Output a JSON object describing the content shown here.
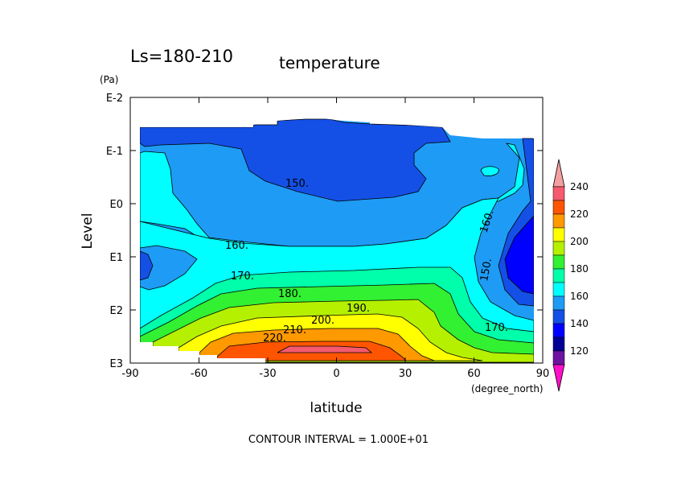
{
  "chart_data": {
    "type": "heatmap",
    "title_period": "Ls=180-210",
    "title_variable": "temperature",
    "xlabel": "latitude",
    "xunit": "(degree_north)",
    "ylabel": "Level",
    "yunit": "(Pa)",
    "xlim": [
      -90,
      90
    ],
    "x_ticks": [
      "-90",
      "-60",
      "-30",
      "0",
      "30",
      "60",
      "90"
    ],
    "y_ticks": [
      "E-2",
      "E-1",
      "E0",
      "E1",
      "E2",
      "E3"
    ],
    "y_scale": "log",
    "contour_labels": [
      {
        "text": "150.",
        "lat": -17,
        "level": "E-1 to E0"
      },
      {
        "text": "160.",
        "lat": -40,
        "level": "E0 to E1"
      },
      {
        "text": "170.",
        "lat": -39,
        "level": "E1 to E2"
      },
      {
        "text": "180.",
        "lat": -20,
        "level": "E1 to E2"
      },
      {
        "text": "190.",
        "lat": 10,
        "level": "E2"
      },
      {
        "text": "200.",
        "lat": -6,
        "level": "E2 to E3"
      },
      {
        "text": "210.",
        "lat": -17,
        "level": "E2 to E3"
      },
      {
        "text": "220.",
        "lat": -26,
        "level": "E2 to E3"
      },
      {
        "text": "160.",
        "lat": 63,
        "level": "E0 to E1"
      },
      {
        "text": "150.",
        "lat": 62,
        "level": "E1"
      },
      {
        "text": "170.",
        "lat": 66,
        "level": "E2 to E3"
      }
    ],
    "colorbar": {
      "ticks": [
        "240",
        "220",
        "200",
        "180",
        "160",
        "140",
        "120"
      ],
      "levels": [
        {
          "range": "230-240",
          "color": "#f55a6e"
        },
        {
          "range": "220-230",
          "color": "#ff5500"
        },
        {
          "range": "210-220",
          "color": "#ff9900"
        },
        {
          "range": "200-210",
          "color": "#ffff00"
        },
        {
          "range": "190-200",
          "color": "#b4f000"
        },
        {
          "range": "180-190",
          "color": "#32f032"
        },
        {
          "range": "170-180",
          "color": "#00ffaa"
        },
        {
          "range": "160-170",
          "color": "#00ffff"
        },
        {
          "range": "150-160",
          "color": "#1e9bf5"
        },
        {
          "range": "140-150",
          "color": "#1450e6"
        },
        {
          "range": "130-140",
          "color": "#0000ff"
        },
        {
          "range": "120-130",
          "color": "#000096"
        },
        {
          "range": "110-120",
          "color": "#6e14a0"
        },
        {
          "range": "over",
          "color": "#f5a0a0"
        },
        {
          "range": "under",
          "color": "#ff10c8"
        }
      ]
    },
    "footer": "CONTOUR INTERVAL = 1.000E+01"
  }
}
